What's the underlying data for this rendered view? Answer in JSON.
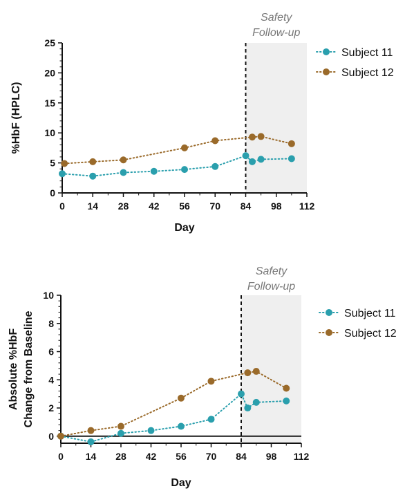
{
  "chart_data": [
    {
      "type": "line",
      "xlabel": "Day",
      "ylabel": "%HbF (HPLC)",
      "xlim": [
        0,
        112
      ],
      "ylim": [
        0,
        25
      ],
      "xticks": [
        0,
        14,
        28,
        42,
        56,
        70,
        84,
        98,
        112
      ],
      "yticks": [
        0,
        5,
        10,
        15,
        20,
        25
      ],
      "grid": false,
      "legend_position": "top-right",
      "vline_x": 84,
      "shaded_region": {
        "x_start": 84,
        "x_end": 112,
        "label_line1": "Safety",
        "label_line2": "Follow-up",
        "color": "#efefef"
      },
      "series": [
        {
          "name": "Subject 11",
          "color": "#2a9fad",
          "x": [
            0,
            14,
            28,
            42,
            56,
            70,
            84,
            87,
            91,
            105
          ],
          "y": [
            3.2,
            2.8,
            3.4,
            3.6,
            3.9,
            4.4,
            6.2,
            5.2,
            5.6,
            5.7
          ]
        },
        {
          "name": "Subject 12",
          "color": "#9a6a2a",
          "x": [
            1,
            14,
            28,
            56,
            70,
            87,
            91,
            105
          ],
          "y": [
            4.9,
            5.2,
            5.5,
            7.5,
            8.7,
            9.3,
            9.4,
            8.2
          ]
        }
      ]
    },
    {
      "type": "line",
      "xlabel": "Day",
      "ylabel": "Absolute %HbF",
      "ylabel2": "Change from Baseline",
      "xlim": [
        0,
        112
      ],
      "ylim": [
        -0.5,
        10
      ],
      "xticks": [
        0,
        14,
        28,
        42,
        56,
        70,
        84,
        98,
        112
      ],
      "yticks": [
        0,
        2,
        4,
        6,
        8,
        10
      ],
      "grid": false,
      "legend_position": "top-right",
      "vline_x": 84,
      "shaded_region": {
        "x_start": 84,
        "x_end": 112,
        "label_line1": "Safety",
        "label_line2": "Follow-up",
        "color": "#efefef"
      },
      "series": [
        {
          "name": "Subject 11",
          "color": "#2a9fad",
          "x": [
            0,
            14,
            28,
            42,
            56,
            70,
            84,
            87,
            91,
            105
          ],
          "y": [
            0,
            -0.4,
            0.2,
            0.4,
            0.7,
            1.2,
            3.0,
            2.0,
            2.4,
            2.5
          ]
        },
        {
          "name": "Subject 12",
          "color": "#9a6a2a",
          "x": [
            0,
            14,
            28,
            56,
            70,
            87,
            91,
            105
          ],
          "y": [
            0,
            0.4,
            0.7,
            2.7,
            3.9,
            4.5,
            4.6,
            3.4
          ]
        }
      ]
    }
  ]
}
